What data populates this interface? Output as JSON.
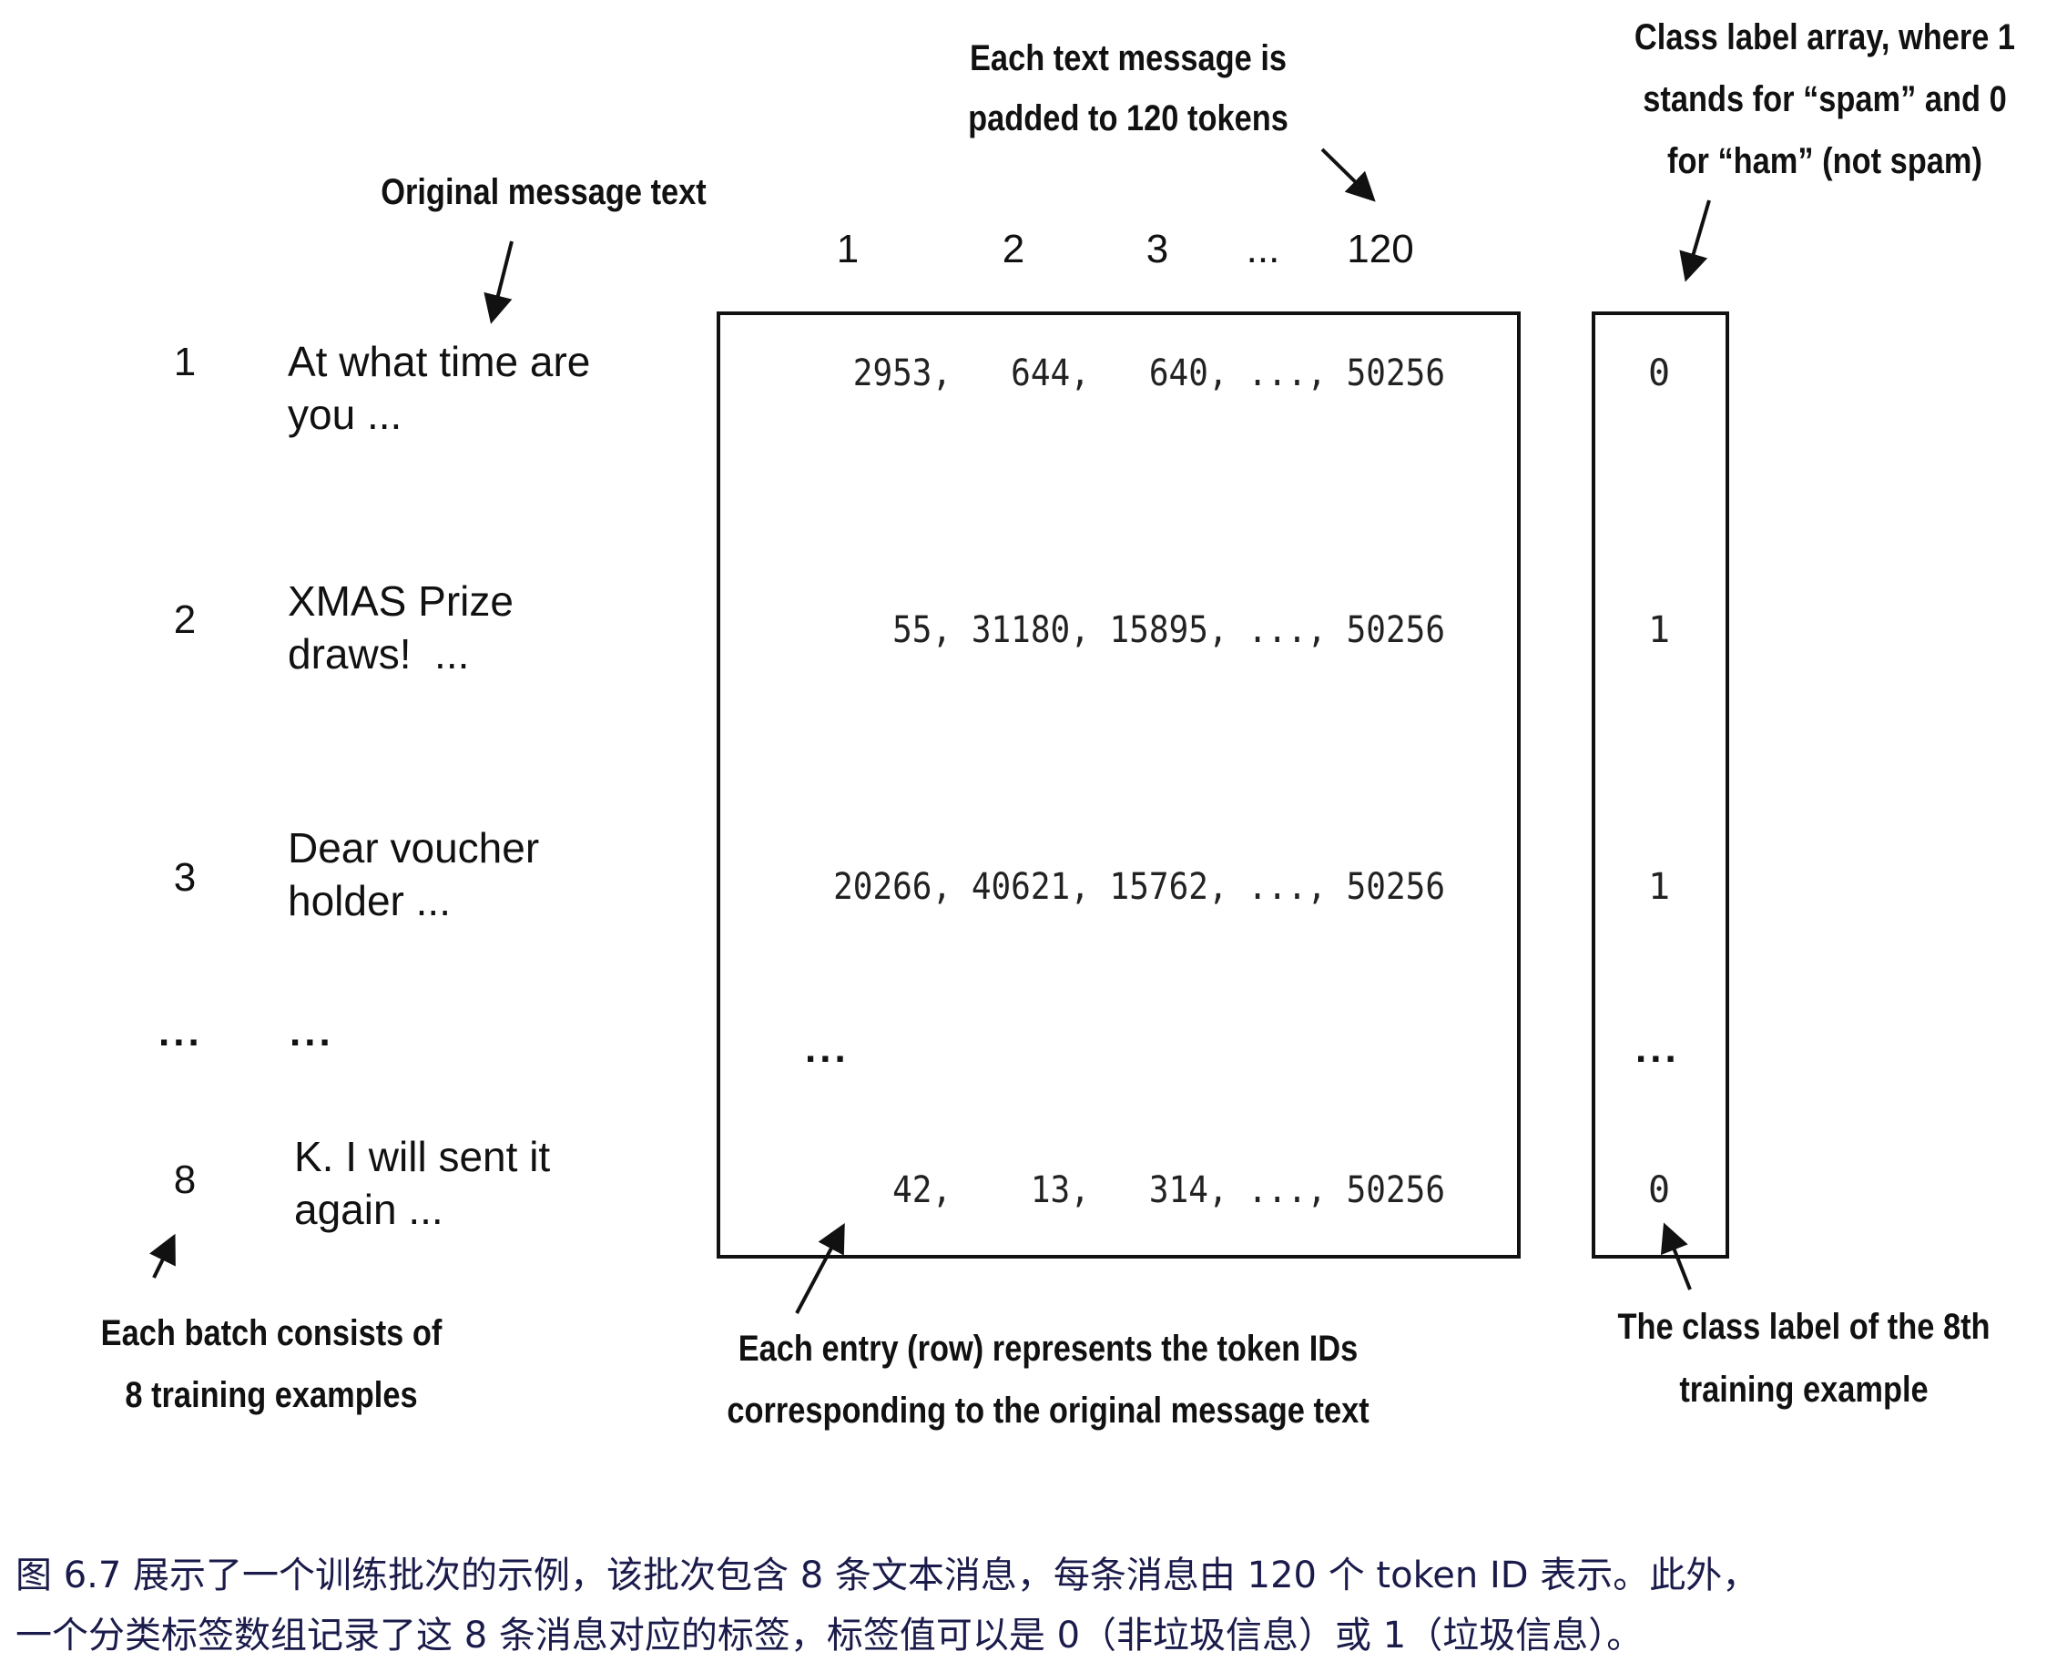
{
  "annotations": {
    "padded": [
      "Each text message is",
      "padded to 120 tokens"
    ],
    "class_array": [
      "Class label array, where 1",
      "stands for “spam” and 0",
      "for “ham” (not spam)"
    ],
    "original": "Original message text",
    "batch": [
      "Each batch consists of",
      "8 training examples"
    ],
    "entry": [
      "Each entry (row) represents the token IDs",
      "corresponding to the original message text"
    ],
    "eighth": [
      "The class label of the 8th",
      "training example"
    ]
  },
  "columns": [
    "1",
    "2",
    "3",
    "...",
    "120"
  ],
  "rows": [
    {
      "index": "1",
      "text": [
        "At what time are",
        "you ..."
      ],
      "tokens": "2953,   644,   640, ..., 50256",
      "label": "0"
    },
    {
      "index": "2",
      "text": [
        "XMAS Prize",
        "draws!  ..."
      ],
      "tokens": "55, 31180, 15895, ..., 50256",
      "label": "1"
    },
    {
      "index": "3",
      "text": [
        "Dear voucher",
        "holder ..."
      ],
      "tokens": "20266, 40621, 15762, ..., 50256",
      "label": "1"
    },
    {
      "index": "...",
      "text": [
        "..."
      ],
      "tokens": "...",
      "label": "..."
    },
    {
      "index": "8",
      "text": [
        "K. I will sent it",
        "again ..."
      ],
      "tokens": "42,    13,   314, ..., 50256",
      "label": "0"
    }
  ],
  "caption": [
    "图 6.7 展示了一个训练批次的示例，该批次包含 8 条文本消息，每条消息由 120 个 token ID 表示。此外，",
    "一个分类标签数组记录了这 8 条消息对应的标签，标签值可以是 0（非垃圾信息）或 1（垃圾信息）。"
  ]
}
